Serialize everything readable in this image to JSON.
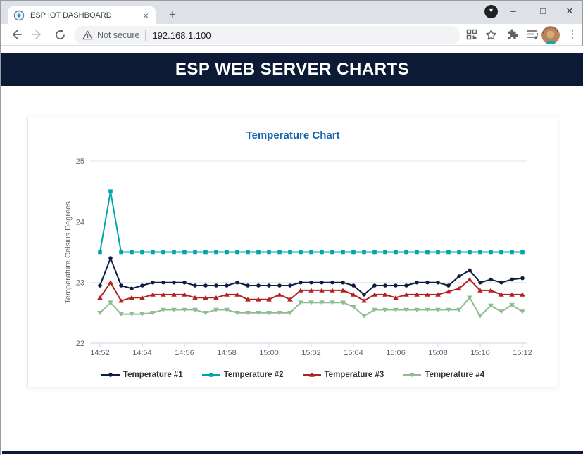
{
  "browser": {
    "tab_title": "ESP IOT DASHBOARD",
    "security_label": "Not secure",
    "url": "192.168.1.100",
    "glyphs": {
      "tab_close": "×",
      "new_tab": "+",
      "chevron_down": "▾",
      "minimize": "–",
      "maximize": "□",
      "window_close": "✕",
      "menu_dots": "⋮"
    }
  },
  "page": {
    "header_title": "ESP WEB SERVER CHARTS",
    "accent_navy": "#0d1a36"
  },
  "chart_data": {
    "type": "line",
    "title": "Temperature Chart",
    "title_color": "#1666ad",
    "ylabel": "Temperature Celsius Degrees",
    "ylim": [
      21.9,
      25.2
    ],
    "yticks": [
      22,
      23,
      24,
      25
    ],
    "grid": true,
    "legend_position": "bottom",
    "x_tick_labels": [
      "14:52",
      "14:54",
      "14:56",
      "14:58",
      "15:00",
      "15:02",
      "15:04",
      "15:06",
      "15:08",
      "15:10",
      "15:12"
    ],
    "x_start_label": "14:52",
    "x_interval_seconds": 30,
    "series": [
      {
        "name": "Temperature #1",
        "color": "#101D42",
        "marker": "circle",
        "values": [
          22.95,
          23.4,
          22.95,
          22.9,
          22.95,
          23.0,
          23.0,
          23.0,
          23.0,
          22.95,
          22.95,
          22.95,
          22.95,
          23.0,
          22.95,
          22.95,
          22.95,
          22.95,
          22.95,
          23.0,
          23.0,
          23.0,
          23.0,
          23.0,
          22.95,
          22.8,
          22.95,
          22.95,
          22.95,
          22.95,
          23.0,
          23.0,
          23.0,
          22.95,
          23.1,
          23.2,
          23.0,
          23.05,
          23.0,
          23.05,
          23.07
        ]
      },
      {
        "name": "Temperature #2",
        "color": "#00A6A6",
        "marker": "square",
        "values": [
          23.5,
          24.5,
          23.5,
          23.5,
          23.5,
          23.5,
          23.5,
          23.5,
          23.5,
          23.5,
          23.5,
          23.5,
          23.5,
          23.5,
          23.5,
          23.5,
          23.5,
          23.5,
          23.5,
          23.5,
          23.5,
          23.5,
          23.5,
          23.5,
          23.5,
          23.5,
          23.5,
          23.5,
          23.5,
          23.5,
          23.5,
          23.5,
          23.5,
          23.5,
          23.5,
          23.5,
          23.5,
          23.5,
          23.5,
          23.5,
          23.5
        ]
      },
      {
        "name": "Temperature #3",
        "color": "#B22222",
        "marker": "triangle",
        "values": [
          22.75,
          23.0,
          22.7,
          22.75,
          22.75,
          22.8,
          22.8,
          22.8,
          22.8,
          22.75,
          22.75,
          22.75,
          22.8,
          22.8,
          22.72,
          22.72,
          22.72,
          22.8,
          22.72,
          22.87,
          22.87,
          22.87,
          22.87,
          22.87,
          22.8,
          22.7,
          22.8,
          22.8,
          22.75,
          22.8,
          22.8,
          22.8,
          22.8,
          22.85,
          22.9,
          23.05,
          22.87,
          22.87,
          22.8,
          22.8,
          22.8
        ]
      },
      {
        "name": "Temperature #4",
        "color": "#8FBC8F",
        "marker": "triangle-down",
        "values": [
          22.5,
          22.67,
          22.48,
          22.48,
          22.48,
          22.5,
          22.55,
          22.55,
          22.55,
          22.55,
          22.5,
          22.55,
          22.55,
          22.5,
          22.5,
          22.5,
          22.5,
          22.5,
          22.5,
          22.67,
          22.67,
          22.67,
          22.67,
          22.67,
          22.6,
          22.45,
          22.55,
          22.55,
          22.55,
          22.55,
          22.55,
          22.55,
          22.55,
          22.55,
          22.55,
          22.75,
          22.45,
          22.62,
          22.52,
          22.63,
          22.52
        ]
      }
    ]
  }
}
